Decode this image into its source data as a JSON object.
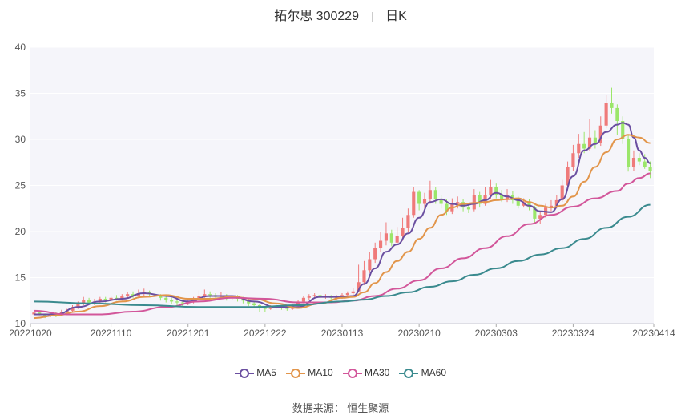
{
  "header": {
    "title": "拓尔思 300229",
    "period": "日K"
  },
  "source": "数据来源： 恒生聚源",
  "colors": {
    "up": "#ef7a7a",
    "down": "#9be66a",
    "ma5": "#6a4ea0",
    "ma10": "#e2954a",
    "ma30": "#d2569a",
    "ma60": "#3a8a8e",
    "plot_bg": "#f5f5fa",
    "grid": "#ffffff"
  },
  "chart_data": {
    "type": "candlestick",
    "ylim": [
      10,
      40
    ],
    "yticks": [
      10,
      15,
      20,
      25,
      30,
      35,
      40
    ],
    "xtick_labels": [
      "20221020",
      "20221110",
      "20221201",
      "20221222",
      "20230113",
      "20230210",
      "20230303",
      "20230324",
      "20230414"
    ],
    "xtick_index": [
      0,
      14,
      28,
      42,
      56,
      70,
      84,
      98,
      112
    ],
    "legend": [
      "MA5",
      "MA10",
      "MA30",
      "MA60"
    ],
    "candles": [
      [
        11.0,
        11.2,
        10.8,
        11.3
      ],
      [
        11.2,
        11.0,
        10.9,
        11.4
      ],
      [
        11.0,
        10.8,
        10.6,
        11.1
      ],
      [
        10.8,
        11.1,
        10.7,
        11.2
      ],
      [
        11.1,
        10.9,
        10.7,
        11.3
      ],
      [
        10.9,
        11.3,
        10.8,
        11.5
      ],
      [
        11.3,
        11.4,
        11.1,
        11.6
      ],
      [
        11.4,
        11.8,
        11.2,
        12.0
      ],
      [
        11.8,
        12.2,
        11.6,
        12.4
      ],
      [
        12.2,
        12.6,
        12.0,
        12.9
      ],
      [
        12.6,
        12.3,
        12.1,
        12.8
      ],
      [
        12.3,
        12.4,
        12.0,
        12.7
      ],
      [
        12.4,
        12.7,
        12.2,
        12.9
      ],
      [
        12.7,
        12.6,
        12.3,
        12.9
      ],
      [
        12.6,
        12.8,
        12.4,
        13.0
      ],
      [
        12.8,
        12.7,
        12.5,
        13.1
      ],
      [
        12.7,
        13.0,
        12.5,
        13.2
      ],
      [
        13.0,
        13.2,
        12.8,
        13.4
      ],
      [
        13.2,
        13.0,
        12.8,
        13.5
      ],
      [
        13.0,
        13.3,
        12.9,
        13.7
      ],
      [
        13.3,
        13.4,
        13.0,
        13.8
      ],
      [
        13.4,
        13.2,
        12.9,
        13.6
      ],
      [
        13.2,
        13.1,
        12.8,
        13.4
      ],
      [
        13.1,
        12.8,
        12.5,
        13.2
      ],
      [
        12.8,
        12.6,
        12.3,
        13.0
      ],
      [
        12.6,
        12.4,
        12.1,
        12.8
      ],
      [
        12.4,
        12.3,
        12.0,
        12.6
      ],
      [
        12.3,
        12.2,
        11.9,
        12.5
      ],
      [
        12.2,
        12.4,
        12.0,
        12.7
      ],
      [
        12.4,
        12.6,
        12.2,
        12.9
      ],
      [
        12.6,
        13.0,
        12.4,
        13.6
      ],
      [
        13.0,
        13.2,
        12.8,
        13.7
      ],
      [
        13.2,
        13.1,
        12.8,
        13.5
      ],
      [
        13.1,
        12.9,
        12.6,
        13.3
      ],
      [
        12.9,
        13.0,
        12.7,
        13.4
      ],
      [
        13.0,
        12.8,
        12.5,
        13.2
      ],
      [
        12.8,
        12.9,
        12.6,
        13.1
      ],
      [
        12.9,
        12.7,
        12.4,
        13.1
      ],
      [
        12.7,
        12.5,
        12.2,
        12.9
      ],
      [
        12.5,
        12.2,
        11.9,
        12.7
      ],
      [
        12.2,
        12.0,
        11.7,
        12.4
      ],
      [
        12.0,
        11.7,
        11.3,
        12.1
      ],
      [
        11.7,
        11.6,
        11.3,
        11.9
      ],
      [
        11.6,
        11.8,
        11.5,
        12.0
      ],
      [
        11.8,
        11.9,
        11.6,
        12.1
      ],
      [
        11.9,
        11.7,
        11.5,
        12.0
      ],
      [
        11.7,
        11.6,
        11.4,
        11.9
      ],
      [
        11.6,
        11.9,
        11.5,
        12.1
      ],
      [
        11.9,
        12.4,
        11.8,
        12.6
      ],
      [
        12.4,
        12.8,
        12.2,
        13.0
      ],
      [
        12.8,
        13.0,
        12.6,
        13.2
      ],
      [
        13.0,
        13.1,
        12.8,
        13.3
      ],
      [
        13.1,
        12.9,
        12.7,
        13.2
      ],
      [
        12.9,
        13.0,
        12.7,
        13.2
      ],
      [
        13.0,
        12.8,
        12.6,
        13.1
      ],
      [
        12.8,
        12.9,
        12.6,
        13.1
      ],
      [
        12.9,
        13.1,
        12.7,
        13.3
      ],
      [
        13.1,
        13.3,
        12.9,
        13.5
      ],
      [
        13.3,
        13.5,
        13.0,
        13.9
      ],
      [
        13.5,
        14.5,
        13.4,
        16.4
      ],
      [
        14.5,
        15.8,
        14.2,
        16.8
      ],
      [
        15.8,
        17.0,
        15.5,
        17.8
      ],
      [
        17.0,
        18.2,
        16.6,
        18.8
      ],
      [
        18.2,
        19.0,
        17.8,
        20.0
      ],
      [
        19.0,
        19.8,
        18.5,
        21.0
      ],
      [
        19.8,
        18.8,
        18.4,
        20.2
      ],
      [
        18.8,
        19.5,
        18.6,
        20.5
      ],
      [
        19.5,
        20.4,
        19.0,
        21.5
      ],
      [
        20.4,
        21.8,
        20.0,
        22.5
      ],
      [
        21.8,
        24.3,
        21.5,
        24.8
      ],
      [
        24.3,
        23.0,
        22.3,
        24.5
      ],
      [
        23.0,
        23.5,
        22.5,
        24.2
      ],
      [
        23.5,
        24.5,
        23.0,
        25.5
      ],
      [
        24.5,
        23.5,
        23.0,
        24.8
      ],
      [
        23.5,
        23.0,
        22.5,
        24.0
      ],
      [
        23.0,
        22.2,
        21.8,
        23.5
      ],
      [
        22.2,
        23.0,
        21.9,
        23.6
      ],
      [
        23.0,
        23.2,
        22.5,
        23.8
      ],
      [
        23.2,
        22.6,
        22.2,
        23.5
      ],
      [
        22.6,
        22.4,
        22.0,
        23.0
      ],
      [
        22.4,
        24.0,
        22.2,
        24.6
      ],
      [
        24.0,
        23.0,
        22.6,
        24.3
      ],
      [
        23.0,
        24.0,
        22.8,
        24.8
      ],
      [
        24.0,
        24.8,
        23.5,
        25.6
      ],
      [
        24.8,
        24.0,
        23.6,
        25.2
      ],
      [
        24.0,
        23.5,
        23.2,
        24.5
      ],
      [
        23.5,
        24.0,
        23.2,
        24.6
      ],
      [
        24.0,
        23.4,
        23.0,
        24.4
      ],
      [
        23.4,
        22.8,
        22.5,
        23.8
      ],
      [
        22.8,
        23.2,
        22.6,
        23.6
      ],
      [
        23.2,
        22.6,
        22.3,
        23.5
      ],
      [
        22.6,
        21.4,
        21.0,
        22.8
      ],
      [
        21.4,
        21.8,
        20.8,
        22.2
      ],
      [
        21.8,
        22.6,
        21.5,
        23.0
      ],
      [
        22.6,
        22.8,
        22.2,
        23.4
      ],
      [
        22.8,
        23.4,
        22.5,
        24.0
      ],
      [
        23.4,
        25.0,
        23.2,
        25.6
      ],
      [
        25.0,
        27.0,
        24.8,
        27.6
      ],
      [
        27.0,
        28.5,
        26.6,
        29.4
      ],
      [
        28.5,
        29.5,
        28.0,
        30.6
      ],
      [
        29.5,
        29.0,
        28.5,
        30.8
      ],
      [
        29.0,
        30.2,
        28.8,
        32.2
      ],
      [
        30.2,
        29.6,
        29.0,
        31.0
      ],
      [
        29.6,
        31.5,
        29.3,
        32.5
      ],
      [
        31.5,
        34.0,
        31.2,
        34.8
      ],
      [
        34.0,
        33.4,
        32.8,
        35.6
      ],
      [
        33.4,
        32.0,
        30.5,
        33.8
      ],
      [
        32.0,
        30.0,
        29.5,
        32.5
      ],
      [
        30.0,
        27.0,
        26.5,
        30.5
      ],
      [
        27.0,
        28.0,
        26.6,
        28.8
      ],
      [
        28.0,
        27.6,
        27.2,
        28.5
      ],
      [
        27.6,
        27.0,
        26.8,
        28.4
      ],
      [
        27.0,
        26.6,
        25.8,
        27.6
      ]
    ],
    "series": [
      {
        "name": "MA5",
        "points": [
          [
            0,
            11.0
          ],
          [
            4,
            11.0
          ],
          [
            8,
            11.8
          ],
          [
            12,
            12.4
          ],
          [
            16,
            12.7
          ],
          [
            20,
            13.3
          ],
          [
            24,
            13.0
          ],
          [
            28,
            12.4
          ],
          [
            32,
            13.0
          ],
          [
            36,
            13.0
          ],
          [
            40,
            12.4
          ],
          [
            44,
            11.8
          ],
          [
            48,
            11.8
          ],
          [
            52,
            12.9
          ],
          [
            56,
            12.9
          ],
          [
            58,
            13.0
          ],
          [
            60,
            14.3
          ],
          [
            62,
            16.0
          ],
          [
            64,
            17.8
          ],
          [
            66,
            18.6
          ],
          [
            68,
            19.8
          ],
          [
            70,
            21.5
          ],
          [
            72,
            23.2
          ],
          [
            74,
            23.5
          ],
          [
            76,
            23.0
          ],
          [
            78,
            22.8
          ],
          [
            80,
            23.0
          ],
          [
            82,
            23.4
          ],
          [
            84,
            24.2
          ],
          [
            86,
            23.8
          ],
          [
            88,
            23.4
          ],
          [
            90,
            22.8
          ],
          [
            92,
            22.2
          ],
          [
            94,
            22.1
          ],
          [
            96,
            23.5
          ],
          [
            98,
            26.0
          ],
          [
            100,
            28.8
          ],
          [
            102,
            29.5
          ],
          [
            104,
            30.8
          ],
          [
            106,
            31.6
          ],
          [
            107,
            31.8
          ],
          [
            108,
            31.6
          ],
          [
            109,
            30.2
          ],
          [
            110,
            28.8
          ],
          [
            111,
            28.0
          ],
          [
            112,
            27.4
          ]
        ]
      },
      {
        "name": "MA10",
        "points": [
          [
            0,
            10.6
          ],
          [
            4,
            10.9
          ],
          [
            8,
            11.3
          ],
          [
            12,
            11.9
          ],
          [
            16,
            12.4
          ],
          [
            20,
            12.9
          ],
          [
            24,
            13.1
          ],
          [
            28,
            12.7
          ],
          [
            32,
            12.7
          ],
          [
            36,
            12.9
          ],
          [
            40,
            12.7
          ],
          [
            44,
            12.2
          ],
          [
            48,
            11.7
          ],
          [
            52,
            12.2
          ],
          [
            56,
            12.8
          ],
          [
            58,
            12.9
          ],
          [
            60,
            13.4
          ],
          [
            62,
            14.4
          ],
          [
            64,
            15.6
          ],
          [
            66,
            16.8
          ],
          [
            68,
            17.8
          ],
          [
            70,
            19.2
          ],
          [
            72,
            20.4
          ],
          [
            74,
            21.8
          ],
          [
            76,
            22.6
          ],
          [
            78,
            23.0
          ],
          [
            80,
            23.1
          ],
          [
            82,
            23.2
          ],
          [
            84,
            23.4
          ],
          [
            86,
            23.5
          ],
          [
            88,
            23.6
          ],
          [
            90,
            23.2
          ],
          [
            92,
            22.8
          ],
          [
            94,
            22.6
          ],
          [
            96,
            22.8
          ],
          [
            98,
            23.8
          ],
          [
            100,
            25.4
          ],
          [
            102,
            27.0
          ],
          [
            104,
            28.6
          ],
          [
            106,
            30.0
          ],
          [
            108,
            30.5
          ],
          [
            110,
            30.2
          ],
          [
            112,
            29.6
          ]
        ]
      },
      {
        "name": "MA30",
        "points": [
          [
            0,
            11.4
          ],
          [
            6,
            11.0
          ],
          [
            12,
            11.0
          ],
          [
            18,
            11.3
          ],
          [
            24,
            11.8
          ],
          [
            30,
            12.4
          ],
          [
            36,
            12.8
          ],
          [
            42,
            12.7
          ],
          [
            48,
            12.3
          ],
          [
            54,
            12.3
          ],
          [
            58,
            12.5
          ],
          [
            62,
            13.0
          ],
          [
            66,
            13.8
          ],
          [
            70,
            14.7
          ],
          [
            74,
            16.0
          ],
          [
            78,
            17.1
          ],
          [
            82,
            18.2
          ],
          [
            86,
            19.5
          ],
          [
            90,
            20.8
          ],
          [
            94,
            21.8
          ],
          [
            98,
            22.7
          ],
          [
            102,
            23.6
          ],
          [
            106,
            24.4
          ],
          [
            108,
            25.2
          ],
          [
            110,
            25.8
          ],
          [
            112,
            26.3
          ]
        ]
      },
      {
        "name": "MA60",
        "points": [
          [
            0,
            12.4
          ],
          [
            10,
            12.2
          ],
          [
            20,
            12.0
          ],
          [
            30,
            11.8
          ],
          [
            40,
            11.8
          ],
          [
            48,
            12.0
          ],
          [
            56,
            12.4
          ],
          [
            60,
            12.6
          ],
          [
            64,
            13.0
          ],
          [
            68,
            13.4
          ],
          [
            72,
            14.0
          ],
          [
            76,
            14.6
          ],
          [
            80,
            15.3
          ],
          [
            84,
            16.0
          ],
          [
            88,
            16.8
          ],
          [
            92,
            17.5
          ],
          [
            96,
            18.2
          ],
          [
            100,
            19.2
          ],
          [
            104,
            20.4
          ],
          [
            108,
            21.6
          ],
          [
            112,
            22.9
          ]
        ]
      }
    ]
  }
}
